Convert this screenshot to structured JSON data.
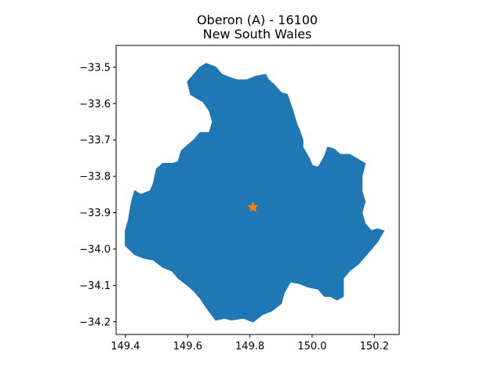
{
  "figure": {
    "title_line1": "Oberon (A) - 16100",
    "title_line2": "New South Wales"
  },
  "chart_data": {
    "type": "map",
    "xlim": [
      149.37,
      150.28
    ],
    "ylim": [
      -34.235,
      -33.44
    ],
    "xticks": [
      149.4,
      149.6,
      149.8,
      150.0,
      150.2
    ],
    "xtick_labels": [
      "149.4",
      "149.6",
      "149.8",
      "150.0",
      "150.2"
    ],
    "yticks": [
      -33.5,
      -33.6,
      -33.7,
      -33.8,
      -33.9,
      -34.0,
      -34.1,
      -34.2
    ],
    "ytick_labels": [
      "−33.5",
      "−33.6",
      "−33.7",
      "−33.8",
      "−33.9",
      "−34.0",
      "−34.1",
      "−34.2"
    ],
    "region": {
      "fill": "#1f77b4",
      "outline": [
        [
          149.66,
          -33.49
        ],
        [
          149.69,
          -33.5
        ],
        [
          149.71,
          -33.52
        ],
        [
          149.74,
          -33.53
        ],
        [
          149.76,
          -33.535
        ],
        [
          149.79,
          -33.535
        ],
        [
          149.82,
          -33.525
        ],
        [
          149.85,
          -33.52
        ],
        [
          149.86,
          -33.535
        ],
        [
          149.88,
          -33.55
        ],
        [
          149.89,
          -33.56
        ],
        [
          149.9,
          -33.57
        ],
        [
          149.92,
          -33.575
        ],
        [
          149.93,
          -33.6
        ],
        [
          149.94,
          -33.625
        ],
        [
          149.95,
          -33.655
        ],
        [
          149.96,
          -33.675
        ],
        [
          149.97,
          -33.7
        ],
        [
          149.97,
          -33.72
        ],
        [
          149.99,
          -33.75
        ],
        [
          150.0,
          -33.77
        ],
        [
          150.02,
          -33.775
        ],
        [
          150.04,
          -33.745
        ],
        [
          150.05,
          -33.72
        ],
        [
          150.07,
          -33.725
        ],
        [
          150.09,
          -33.74
        ],
        [
          150.12,
          -33.74
        ],
        [
          150.15,
          -33.755
        ],
        [
          150.17,
          -33.765
        ],
        [
          150.16,
          -33.8
        ],
        [
          150.16,
          -33.84
        ],
        [
          150.17,
          -33.87
        ],
        [
          150.16,
          -33.9
        ],
        [
          150.17,
          -33.93
        ],
        [
          150.19,
          -33.95
        ],
        [
          150.21,
          -33.945
        ],
        [
          150.23,
          -33.95
        ],
        [
          150.21,
          -33.98
        ],
        [
          150.18,
          -34.01
        ],
        [
          150.17,
          -34.02
        ],
        [
          150.15,
          -34.04
        ],
        [
          150.12,
          -34.06
        ],
        [
          150.1,
          -34.08
        ],
        [
          150.1,
          -34.1
        ],
        [
          150.1,
          -34.13
        ],
        [
          150.08,
          -34.14
        ],
        [
          150.06,
          -34.13
        ],
        [
          150.04,
          -34.13
        ],
        [
          150.02,
          -34.11
        ],
        [
          149.99,
          -34.105
        ],
        [
          149.96,
          -34.095
        ],
        [
          149.93,
          -34.09
        ],
        [
          149.91,
          -34.12
        ],
        [
          149.9,
          -34.15
        ],
        [
          149.87,
          -34.17
        ],
        [
          149.84,
          -34.18
        ],
        [
          149.81,
          -34.2
        ],
        [
          149.78,
          -34.19
        ],
        [
          149.74,
          -34.195
        ],
        [
          149.72,
          -34.19
        ],
        [
          149.69,
          -34.195
        ],
        [
          149.66,
          -34.16
        ],
        [
          149.64,
          -34.135
        ],
        [
          149.62,
          -34.115
        ],
        [
          149.6,
          -34.1
        ],
        [
          149.57,
          -34.08
        ],
        [
          149.55,
          -34.06
        ],
        [
          149.52,
          -34.05
        ],
        [
          149.49,
          -34.03
        ],
        [
          149.46,
          -34.025
        ],
        [
          149.43,
          -34.015
        ],
        [
          149.4,
          -33.99
        ],
        [
          149.4,
          -33.95
        ],
        [
          149.41,
          -33.92
        ],
        [
          149.42,
          -33.87
        ],
        [
          149.43,
          -33.84
        ],
        [
          149.45,
          -33.85
        ],
        [
          149.48,
          -33.84
        ],
        [
          149.49,
          -33.82
        ],
        [
          149.5,
          -33.78
        ],
        [
          149.52,
          -33.765
        ],
        [
          149.55,
          -33.765
        ],
        [
          149.57,
          -33.76
        ],
        [
          149.58,
          -33.73
        ],
        [
          149.6,
          -33.715
        ],
        [
          149.62,
          -33.7
        ],
        [
          149.64,
          -33.68
        ],
        [
          149.67,
          -33.68
        ],
        [
          149.68,
          -33.65
        ],
        [
          149.67,
          -33.62
        ],
        [
          149.65,
          -33.595
        ],
        [
          149.63,
          -33.585
        ],
        [
          149.61,
          -33.575
        ],
        [
          149.6,
          -33.54
        ],
        [
          149.64,
          -33.5
        ]
      ]
    },
    "marker": {
      "x": 149.81,
      "y": -33.885,
      "symbol": "star",
      "color": "#ff7f0e"
    }
  }
}
